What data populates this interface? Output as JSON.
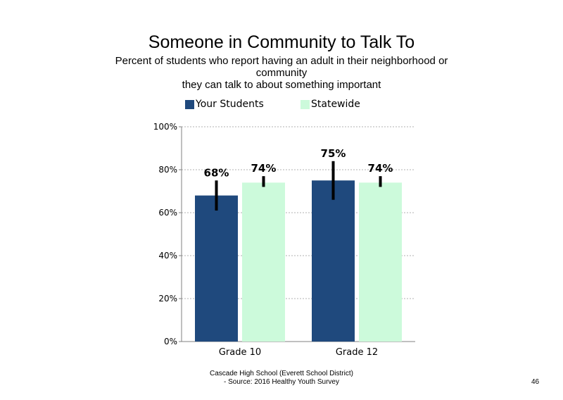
{
  "chart_data": {
    "type": "bar",
    "title": "Someone in Community to Talk To",
    "subtitle_lines": [
      "Percent of students who report having an adult in their neighborhood or community",
      "they can talk to about something important"
    ],
    "categories": [
      "Grade 10",
      "Grade 12"
    ],
    "series": [
      {
        "name": "Your Students",
        "color": "#1f497d",
        "values": [
          68,
          75
        ],
        "labels": [
          "68%",
          "75%"
        ],
        "error_low": [
          61,
          66
        ],
        "error_high": [
          75,
          84
        ]
      },
      {
        "name": "Statewide",
        "color": "#ccfadb",
        "values": [
          74,
          74
        ],
        "labels": [
          "74%",
          "74%"
        ],
        "error_low": [
          72,
          72
        ],
        "error_high": [
          77,
          77
        ]
      }
    ],
    "ylim": [
      0,
      100
    ],
    "yticks": [
      0,
      20,
      40,
      60,
      80,
      100
    ],
    "ytick_labels": [
      "0%",
      "20%",
      "40%",
      "60%",
      "80%",
      "100%"
    ],
    "gridlines": true,
    "legend_position": "top"
  },
  "footer": {
    "line1": "Cascade High School (Everett School District)",
    "line2": "- Source: 2016 Healthy Youth Survey"
  },
  "page_number": "46"
}
